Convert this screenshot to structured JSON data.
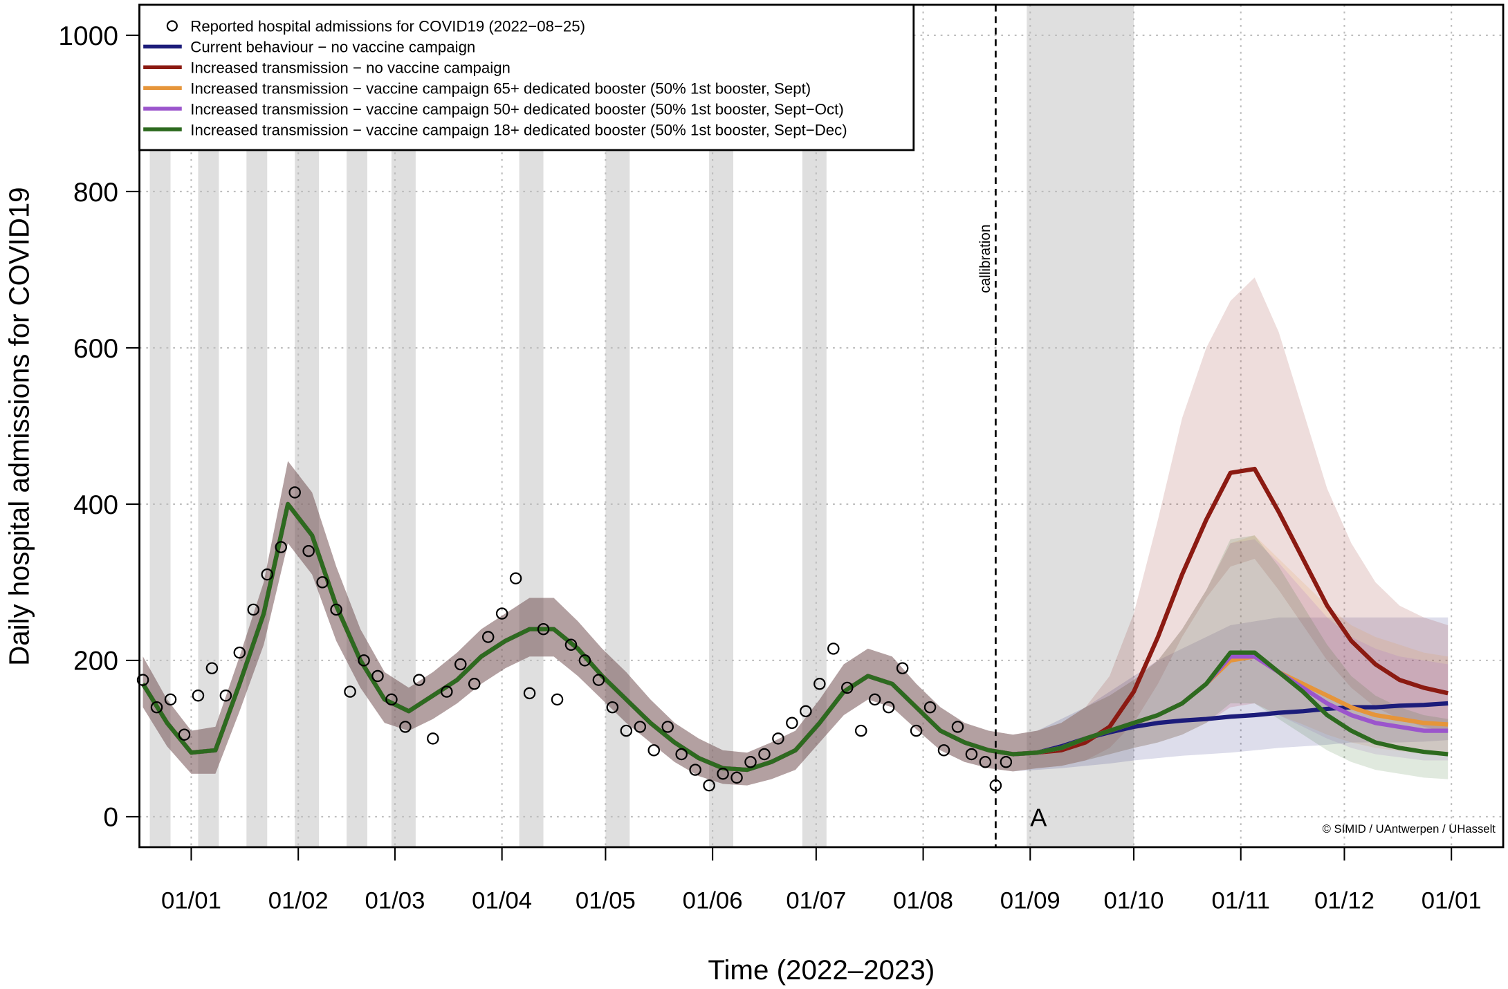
{
  "chart_data": {
    "type": "line",
    "x_label": "Time (2022–2023)",
    "y_label": "Daily hospital admissions for COVID19",
    "xlim": [
      -15,
      380
    ],
    "ylim": [
      -39,
      1039
    ],
    "xticks": [
      {
        "value": 0,
        "label": "01/01"
      },
      {
        "value": 31,
        "label": "01/02"
      },
      {
        "value": 59,
        "label": "01/03"
      },
      {
        "value": 90,
        "label": "01/04"
      },
      {
        "value": 120,
        "label": "01/05"
      },
      {
        "value": 151,
        "label": "01/06"
      },
      {
        "value": 181,
        "label": "01/07"
      },
      {
        "value": 212,
        "label": "01/08"
      },
      {
        "value": 243,
        "label": "01/09"
      },
      {
        "value": 273,
        "label": "01/10"
      },
      {
        "value": 304,
        "label": "01/11"
      },
      {
        "value": 334,
        "label": "01/12"
      },
      {
        "value": 365,
        "label": "01/01"
      }
    ],
    "yticks": [
      0,
      200,
      400,
      600,
      800,
      1000
    ],
    "grid": true,
    "legend": "topleft",
    "band_opacity": 0.15,
    "shaded_periods": [
      [
        -12,
        -6
      ],
      [
        2,
        8
      ],
      [
        16,
        22
      ],
      [
        30,
        37
      ],
      [
        45,
        51
      ],
      [
        58,
        65
      ],
      [
        95,
        102
      ],
      [
        120,
        127
      ],
      [
        150,
        157
      ],
      [
        177,
        184
      ],
      [
        242,
        273
      ]
    ],
    "annotations": [
      {
        "text": "callibration",
        "x": 233
      },
      {
        "text": "A",
        "x": 243,
        "y": 0
      }
    ],
    "credit": "© SIMID / UAntwerpen / UHasselt",
    "observed": {
      "name": "Reported hospital admissions for COVID19 (2022−08−25)",
      "color": "#000000",
      "x": [
        -14,
        -10,
        -6,
        -2,
        2,
        6,
        10,
        14,
        18,
        22,
        26,
        30,
        34,
        38,
        42,
        46,
        50,
        54,
        58,
        62,
        66,
        70,
        74,
        78,
        82,
        86,
        90,
        94,
        98,
        102,
        106,
        110,
        114,
        118,
        122,
        126,
        130,
        134,
        138,
        142,
        146,
        150,
        154,
        158,
        162,
        166,
        170,
        174,
        178,
        182,
        186,
        190,
        194,
        198,
        202,
        206,
        210,
        214,
        218,
        222,
        226,
        230,
        233,
        236
      ],
      "values": [
        175,
        140,
        150,
        105,
        155,
        190,
        155,
        210,
        265,
        310,
        345,
        415,
        340,
        300,
        265,
        160,
        200,
        180,
        150,
        115,
        175,
        100,
        160,
        195,
        170,
        230,
        260,
        305,
        158,
        240,
        150,
        220,
        200,
        175,
        140,
        110,
        115,
        85,
        115,
        80,
        60,
        40,
        55,
        50,
        70,
        80,
        100,
        120,
        135,
        170,
        215,
        165,
        110,
        150,
        140,
        190,
        110,
        140,
        85,
        115,
        80,
        70,
        40,
        70
      ]
    },
    "x": [
      -14,
      -7,
      0,
      7,
      14,
      21,
      28,
      35,
      42,
      49,
      56,
      63,
      70,
      77,
      84,
      91,
      98,
      105,
      112,
      119,
      126,
      133,
      140,
      147,
      154,
      161,
      168,
      175,
      182,
      189,
      196,
      203,
      210,
      217,
      224,
      231,
      238,
      245,
      252,
      259,
      266,
      273,
      280,
      287,
      294,
      301,
      308,
      315,
      322,
      329,
      336,
      343,
      350,
      357,
      364
    ],
    "series": [
      {
        "name": "Current behaviour − no vaccine campaign",
        "color": "#1c1c7a",
        "values": [
          170,
          120,
          82,
          85,
          170,
          260,
          400,
          360,
          270,
          200,
          150,
          135,
          155,
          175,
          205,
          225,
          240,
          240,
          215,
          180,
          150,
          120,
          95,
          75,
          62,
          60,
          70,
          85,
          120,
          160,
          180,
          170,
          140,
          110,
          95,
          85,
          80,
          82,
          90,
          100,
          108,
          115,
          120,
          123,
          125,
          128,
          130,
          133,
          135,
          138,
          140,
          140,
          142,
          143,
          145
        ],
        "lower": [
          140,
          90,
          55,
          55,
          135,
          220,
          350,
          310,
          225,
          165,
          120,
          110,
          125,
          145,
          170,
          190,
          205,
          205,
          180,
          150,
          120,
          95,
          70,
          52,
          42,
          40,
          48,
          60,
          95,
          130,
          150,
          140,
          112,
          85,
          70,
          62,
          58,
          60,
          62,
          65,
          68,
          72,
          75,
          78,
          80,
          82,
          85,
          88,
          90,
          92,
          95,
          95,
          95,
          96,
          98
        ],
        "upper": [
          205,
          150,
          110,
          115,
          205,
          300,
          455,
          415,
          320,
          240,
          185,
          165,
          185,
          210,
          240,
          260,
          280,
          280,
          250,
          215,
          185,
          150,
          120,
          100,
          85,
          82,
          95,
          110,
          150,
          195,
          215,
          205,
          170,
          140,
          120,
          110,
          105,
          110,
          125,
          140,
          160,
          180,
          200,
          215,
          230,
          245,
          250,
          255,
          255,
          255,
          255,
          255,
          255,
          255,
          255
        ]
      },
      {
        "name": "Increased transmission − no vaccine campaign",
        "color": "#8b1a12",
        "values": [
          170,
          120,
          82,
          85,
          170,
          260,
          400,
          360,
          270,
          200,
          150,
          135,
          155,
          175,
          205,
          225,
          240,
          240,
          215,
          180,
          150,
          120,
          95,
          75,
          62,
          60,
          70,
          85,
          120,
          160,
          180,
          170,
          140,
          110,
          95,
          85,
          80,
          82,
          85,
          95,
          115,
          160,
          230,
          310,
          380,
          440,
          445,
          390,
          330,
          270,
          225,
          195,
          175,
          165,
          158
        ],
        "lower": [
          140,
          90,
          55,
          55,
          135,
          220,
          350,
          310,
          225,
          165,
          120,
          110,
          125,
          145,
          170,
          190,
          205,
          205,
          180,
          150,
          120,
          95,
          70,
          52,
          42,
          40,
          48,
          60,
          95,
          130,
          150,
          140,
          112,
          85,
          70,
          62,
          58,
          62,
          65,
          72,
          88,
          120,
          170,
          230,
          280,
          320,
          330,
          290,
          245,
          200,
          165,
          140,
          125,
          115,
          108
        ],
        "upper": [
          205,
          150,
          110,
          115,
          205,
          300,
          455,
          415,
          320,
          240,
          185,
          165,
          185,
          210,
          240,
          260,
          280,
          280,
          250,
          215,
          185,
          150,
          120,
          100,
          85,
          82,
          95,
          110,
          150,
          195,
          215,
          205,
          170,
          140,
          120,
          110,
          105,
          110,
          120,
          140,
          180,
          260,
          380,
          510,
          600,
          660,
          690,
          620,
          520,
          420,
          350,
          300,
          270,
          255,
          245
        ]
      },
      {
        "name": "Increased transmission − vaccine campaign 65+ dedicated booster (50% 1st booster, Sept)",
        "color": "#e6953a",
        "values": [
          170,
          120,
          82,
          85,
          170,
          260,
          400,
          360,
          270,
          200,
          150,
          135,
          155,
          175,
          205,
          225,
          240,
          240,
          215,
          180,
          150,
          120,
          95,
          75,
          62,
          60,
          70,
          85,
          120,
          160,
          180,
          170,
          140,
          110,
          95,
          85,
          80,
          82,
          88,
          100,
          110,
          120,
          130,
          145,
          170,
          200,
          205,
          185,
          170,
          155,
          140,
          130,
          125,
          120,
          118
        ],
        "lower": [
          140,
          90,
          55,
          55,
          135,
          220,
          350,
          310,
          225,
          165,
          120,
          110,
          125,
          145,
          170,
          190,
          205,
          205,
          180,
          150,
          120,
          95,
          70,
          52,
          42,
          40,
          48,
          60,
          95,
          130,
          150,
          140,
          112,
          85,
          70,
          62,
          58,
          62,
          65,
          72,
          80,
          88,
          95,
          105,
          120,
          140,
          145,
          130,
          118,
          105,
          95,
          88,
          84,
          80,
          78
        ],
        "upper": [
          205,
          150,
          110,
          115,
          205,
          300,
          455,
          415,
          320,
          240,
          185,
          165,
          185,
          210,
          240,
          260,
          280,
          280,
          250,
          215,
          185,
          150,
          120,
          100,
          85,
          82,
          95,
          110,
          150,
          195,
          215,
          205,
          170,
          140,
          120,
          110,
          105,
          110,
          120,
          140,
          155,
          175,
          200,
          240,
          290,
          350,
          360,
          330,
          300,
          270,
          245,
          230,
          220,
          210,
          205
        ]
      },
      {
        "name": "Increased transmission − vaccine campaign 50+ dedicated booster (50% 1st booster, Sept−Oct)",
        "color": "#9b55cc",
        "values": [
          170,
          120,
          82,
          85,
          170,
          260,
          400,
          360,
          270,
          200,
          150,
          135,
          155,
          175,
          205,
          225,
          240,
          240,
          215,
          180,
          150,
          120,
          95,
          75,
          62,
          60,
          70,
          85,
          120,
          160,
          180,
          170,
          140,
          110,
          95,
          85,
          80,
          82,
          88,
          100,
          110,
          120,
          130,
          145,
          170,
          205,
          205,
          185,
          165,
          145,
          130,
          120,
          115,
          110,
          110
        ],
        "lower": [
          140,
          90,
          55,
          55,
          135,
          220,
          350,
          310,
          225,
          165,
          120,
          110,
          125,
          145,
          170,
          190,
          205,
          205,
          180,
          150,
          120,
          95,
          70,
          52,
          42,
          40,
          48,
          60,
          95,
          130,
          150,
          140,
          112,
          85,
          70,
          62,
          58,
          62,
          65,
          72,
          80,
          88,
          95,
          105,
          120,
          140,
          145,
          130,
          115,
          100,
          88,
          80,
          76,
          72,
          72
        ],
        "upper": [
          205,
          150,
          110,
          115,
          205,
          300,
          455,
          415,
          320,
          240,
          185,
          165,
          185,
          210,
          240,
          260,
          280,
          280,
          250,
          215,
          185,
          150,
          120,
          100,
          85,
          82,
          95,
          110,
          150,
          195,
          215,
          205,
          170,
          140,
          120,
          110,
          105,
          110,
          120,
          140,
          155,
          175,
          200,
          240,
          290,
          350,
          355,
          325,
          290,
          255,
          230,
          215,
          205,
          200,
          195
        ]
      },
      {
        "name": "Increased transmission − vaccine campaign 18+ dedicated booster (50% 1st booster, Sept−Dec)",
        "color": "#2d6a1f",
        "values": [
          170,
          120,
          82,
          85,
          170,
          260,
          400,
          360,
          270,
          200,
          150,
          135,
          155,
          175,
          205,
          225,
          240,
          240,
          215,
          180,
          150,
          120,
          95,
          75,
          62,
          60,
          70,
          85,
          120,
          160,
          180,
          170,
          140,
          110,
          95,
          85,
          80,
          82,
          88,
          100,
          110,
          120,
          130,
          145,
          170,
          210,
          210,
          185,
          160,
          130,
          110,
          95,
          88,
          83,
          80
        ],
        "lower": [
          140,
          90,
          55,
          55,
          135,
          220,
          350,
          310,
          225,
          165,
          120,
          110,
          125,
          145,
          170,
          190,
          205,
          205,
          180,
          150,
          120,
          95,
          70,
          52,
          42,
          40,
          48,
          60,
          95,
          130,
          150,
          140,
          112,
          85,
          70,
          62,
          58,
          62,
          65,
          72,
          80,
          88,
          95,
          105,
          120,
          145,
          145,
          125,
          105,
          85,
          70,
          60,
          55,
          50,
          48
        ],
        "upper": [
          205,
          150,
          110,
          115,
          205,
          300,
          455,
          415,
          320,
          240,
          185,
          165,
          185,
          210,
          240,
          260,
          280,
          280,
          250,
          215,
          185,
          150,
          120,
          100,
          85,
          82,
          95,
          110,
          150,
          195,
          215,
          205,
          170,
          140,
          120,
          110,
          105,
          110,
          120,
          140,
          155,
          175,
          200,
          240,
          290,
          355,
          360,
          320,
          270,
          220,
          180,
          155,
          140,
          130,
          125
        ]
      }
    ]
  }
}
